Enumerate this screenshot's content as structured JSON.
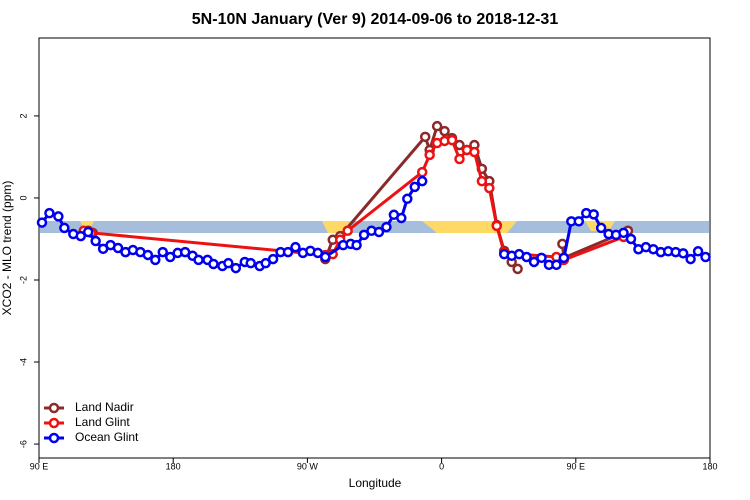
{
  "chart_data": {
    "type": "line",
    "title": "5N-10N January (Ver 9)   2014-09-06 to 2018-12-31",
    "x_label": "Longitude",
    "y_label": "XCO2 - MLO trend (ppm)",
    "xlim": [
      -270,
      180
    ],
    "xticks": [
      {
        "value": -270,
        "label": "90 E"
      },
      {
        "value": -180,
        "label": "180"
      },
      {
        "value": -90,
        "label": "90 W"
      },
      0,
      {
        "value": 90,
        "label": "90 E"
      },
      {
        "value": 180,
        "label": "180"
      }
    ],
    "ylim": [
      -6.34,
      3.9
    ],
    "yticks": [
      2,
      0,
      -2,
      -4,
      -6
    ],
    "grid": false,
    "legend": "bottom-left",
    "series": [
      {
        "name": "Land Nadir",
        "color": "#8b2a2a",
        "x": [
          -237,
          -234,
          -83,
          -78,
          -73,
          -68,
          -11,
          -8,
          -3,
          2,
          7,
          12,
          17,
          22,
          27,
          32,
          37,
          42,
          47,
          51,
          77,
          81,
          82,
          125
        ],
        "values": [
          -0.8,
          -0.85,
          null,
          -1.49,
          -1.02,
          -0.93,
          1.49,
          1.17,
          1.75,
          1.63,
          1.46,
          1.29,
          1.17,
          1.29,
          0.71,
          0.41,
          -0.66,
          -1.29,
          -1.56,
          -1.73,
          null,
          -1.12,
          -1.46,
          -0.8
        ]
      },
      {
        "name": "Land Glint",
        "color": "#ee1111",
        "x": [
          -240,
          -235,
          -78,
          -73,
          -68,
          -63,
          -13,
          -8,
          -3,
          2,
          7,
          12,
          17,
          22,
          27,
          32,
          37,
          42,
          77,
          82,
          122,
          125
        ],
        "values": [
          -0.8,
          -0.85,
          -1.39,
          -1.37,
          -1.02,
          -0.8,
          0.63,
          1.05,
          1.34,
          1.39,
          1.41,
          0.95,
          1.17,
          1.12,
          0.41,
          0.24,
          -0.68,
          -1.34,
          -1.44,
          -1.51,
          -0.95,
          null
        ]
      },
      {
        "name": "Ocean Glint",
        "color": "#0000ee",
        "x": [
          -268,
          -263,
          -257,
          -253,
          -247,
          -242,
          -237,
          -232,
          -227,
          -222,
          -217,
          -212,
          -207,
          -202,
          -197,
          -192,
          -187,
          -182,
          -177,
          -172,
          -167,
          -163,
          -157,
          -153,
          -147,
          -143,
          -138,
          -132,
          -128,
          -122,
          -118,
          -113,
          -108,
          -103,
          -98,
          -93,
          -88,
          -83,
          -78,
          -66,
          -61,
          -57,
          -52,
          -47,
          -42,
          -37,
          -32,
          -27,
          -23,
          -18,
          -13,
          0,
          42,
          47,
          52,
          57,
          62,
          67,
          72,
          77,
          82,
          87,
          92,
          97,
          102,
          107,
          112,
          117,
          122,
          127,
          132,
          137,
          142,
          147,
          152,
          157,
          162,
          167,
          172,
          177
        ],
        "values": [
          -0.6,
          -0.37,
          -0.45,
          -0.73,
          -0.88,
          -0.93,
          -0.83,
          -1.05,
          -1.24,
          -1.15,
          -1.22,
          -1.32,
          -1.27,
          -1.32,
          -1.39,
          -1.51,
          -1.32,
          -1.44,
          -1.34,
          -1.32,
          -1.41,
          -1.51,
          -1.51,
          -1.61,
          -1.66,
          -1.59,
          -1.71,
          -1.56,
          -1.59,
          -1.66,
          -1.59,
          -1.49,
          -1.32,
          -1.32,
          -1.2,
          -1.34,
          -1.29,
          -1.34,
          -1.44,
          -1.15,
          -1.12,
          -1.15,
          -0.9,
          -0.8,
          -0.83,
          -0.71,
          -0.41,
          -0.49,
          -0.02,
          0.27,
          0.41,
          null,
          -1.37,
          -1.41,
          -1.37,
          -1.44,
          -1.56,
          -1.46,
          -1.63,
          -1.63,
          -1.46,
          -0.57,
          -0.57,
          -0.37,
          -0.4,
          -0.73,
          -0.88,
          -0.9,
          -0.85,
          -1.0,
          -1.25,
          -1.2,
          -1.25,
          -1.32,
          -1.3,
          -1.32,
          -1.35,
          -1.49,
          -1.3,
          -1.44
        ]
      }
    ]
  }
}
